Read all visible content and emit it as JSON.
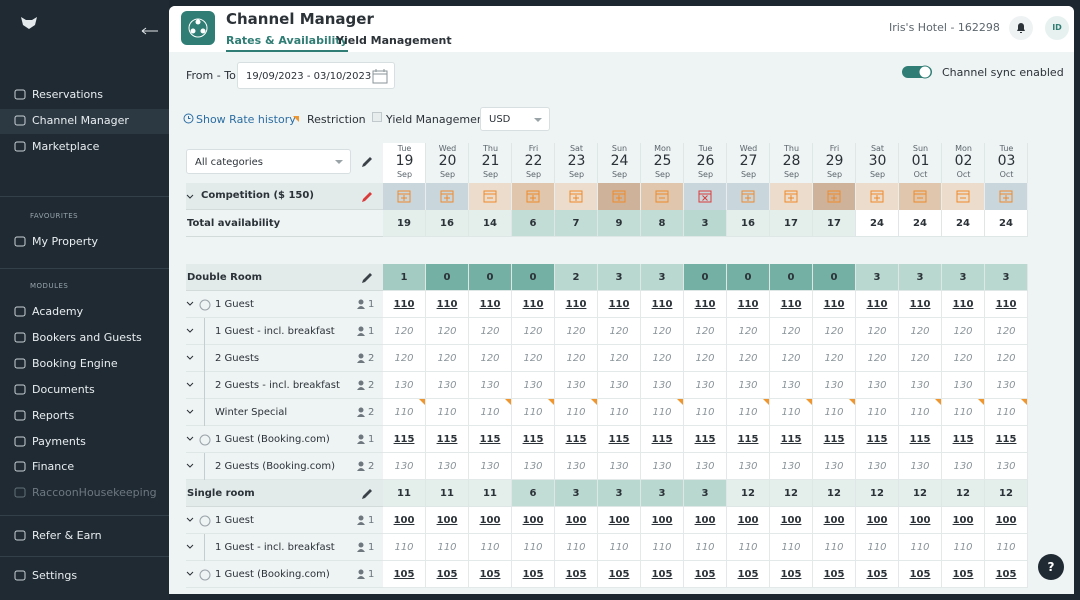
{
  "sidebar": {
    "nav": [
      "Reservations",
      "Channel Manager",
      "Marketplace"
    ],
    "favourites_title": "FAVOURITES",
    "favourites": [
      "My Property"
    ],
    "modules_title": "MODULES",
    "modules": [
      "Academy",
      "Bookers and Guests",
      "Booking Engine",
      "Documents",
      "Reports",
      "Payments",
      "Finance",
      "RaccoonHousekeeping"
    ],
    "refer": "Refer & Earn",
    "settings": "Settings"
  },
  "header": {
    "title": "Channel Manager",
    "tabs": [
      "Rates & Availability",
      "Yield Management"
    ],
    "hotel": "Iris's Hotel - 162298",
    "avatar": "ID"
  },
  "toolbar": {
    "date_label": "From - To:",
    "date_range": "19/09/2023 - 03/10/2023",
    "sync": "Channel sync enabled",
    "rate_history": "Show Rate history",
    "restriction": "Restriction",
    "yield": "Yield Management",
    "currency": "USD",
    "category": "All categories"
  },
  "table": {
    "dates": [
      {
        "dow": "Tue",
        "day": "19",
        "month": "Sep"
      },
      {
        "dow": "Wed",
        "day": "20",
        "month": "Sep"
      },
      {
        "dow": "Thu",
        "day": "21",
        "month": "Sep"
      },
      {
        "dow": "Fri",
        "day": "22",
        "month": "Sep"
      },
      {
        "dow": "Sat",
        "day": "23",
        "month": "Sep"
      },
      {
        "dow": "Sun",
        "day": "24",
        "month": "Sep"
      },
      {
        "dow": "Mon",
        "day": "25",
        "month": "Sep"
      },
      {
        "dow": "Tue",
        "day": "26",
        "month": "Sep"
      },
      {
        "dow": "Wed",
        "day": "27",
        "month": "Sep"
      },
      {
        "dow": "Thu",
        "day": "28",
        "month": "Sep"
      },
      {
        "dow": "Fri",
        "day": "29",
        "month": "Sep"
      },
      {
        "dow": "Sat",
        "day": "30",
        "month": "Sep"
      },
      {
        "dow": "Sun",
        "day": "01",
        "month": "Oct"
      },
      {
        "dow": "Mon",
        "day": "02",
        "month": "Oct"
      },
      {
        "dow": "Tue",
        "day": "03",
        "month": "Oct"
      }
    ],
    "competition": "Competition ($ 150)",
    "total_label": "Total availability",
    "total": [
      19,
      16,
      14,
      6,
      7,
      9,
      8,
      3,
      16,
      17,
      17,
      24,
      24,
      24,
      24
    ],
    "rooms": [
      {
        "name": "Double Room",
        "availability": [
          1,
          0,
          0,
          0,
          2,
          3,
          3,
          0,
          0,
          0,
          0,
          3,
          3,
          3,
          3
        ],
        "rates": [
          {
            "name": "1 Guest",
            "occupancy": 1,
            "italic": false,
            "values": [
              110,
              110,
              110,
              110,
              110,
              110,
              110,
              110,
              110,
              110,
              110,
              110,
              110,
              110,
              110
            ]
          },
          {
            "name": "1 Guest - incl. breakfast",
            "occupancy": 1,
            "italic": true,
            "values": [
              120,
              120,
              120,
              120,
              120,
              120,
              120,
              120,
              120,
              120,
              120,
              120,
              120,
              120,
              120
            ]
          },
          {
            "name": "2 Guests",
            "occupancy": 2,
            "italic": true,
            "values": [
              120,
              120,
              120,
              120,
              120,
              120,
              120,
              120,
              120,
              120,
              120,
              120,
              120,
              120,
              120
            ]
          },
          {
            "name": "2 Guests - incl. breakfast",
            "occupancy": 2,
            "italic": true,
            "values": [
              130,
              130,
              130,
              130,
              130,
              130,
              130,
              130,
              130,
              130,
              130,
              130,
              130,
              130,
              130
            ]
          },
          {
            "name": "Winter Special",
            "occupancy": 2,
            "italic": true,
            "values": [
              110,
              110,
              110,
              110,
              110,
              110,
              110,
              110,
              110,
              110,
              110,
              110,
              110,
              110,
              110
            ],
            "restrictions": [
              true,
              false,
              true,
              true,
              true,
              false,
              true,
              false,
              true,
              true,
              true,
              false,
              true,
              true,
              true
            ]
          },
          {
            "name": "1 Guest (Booking.com)",
            "occupancy": 1,
            "italic": false,
            "values": [
              115,
              115,
              115,
              115,
              115,
              115,
              115,
              115,
              115,
              115,
              115,
              115,
              115,
              115,
              115
            ]
          },
          {
            "name": "2 Guests (Booking.com)",
            "occupancy": 2,
            "italic": true,
            "values": [
              130,
              130,
              130,
              130,
              130,
              130,
              130,
              130,
              130,
              130,
              130,
              130,
              130,
              130,
              130
            ]
          }
        ]
      },
      {
        "name": "Single room",
        "availability": [
          11,
          11,
          11,
          6,
          3,
          3,
          3,
          3,
          12,
          12,
          12,
          12,
          12,
          12,
          12
        ],
        "rates": [
          {
            "name": "1 Guest",
            "occupancy": 1,
            "italic": false,
            "values": [
              100,
              100,
              100,
              100,
              100,
              100,
              100,
              100,
              100,
              100,
              100,
              100,
              100,
              100,
              100
            ]
          },
          {
            "name": "1 Guest - incl. breakfast",
            "occupancy": 1,
            "italic": true,
            "values": [
              110,
              110,
              110,
              110,
              110,
              110,
              110,
              110,
              110,
              110,
              110,
              110,
              110,
              110,
              110
            ]
          },
          {
            "name": "1 Guest (Booking.com)",
            "occupancy": 1,
            "italic": false,
            "values": [
              105,
              105,
              105,
              105,
              105,
              105,
              105,
              105,
              105,
              105,
              105,
              105,
              105,
              105,
              105
            ]
          }
        ]
      }
    ]
  },
  "help": "?"
}
